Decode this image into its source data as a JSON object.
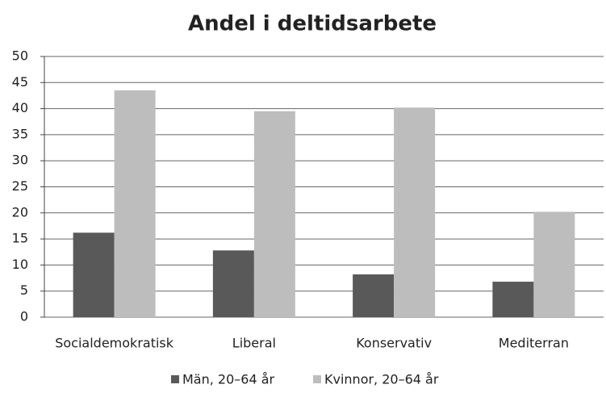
{
  "chart_data": {
    "type": "bar",
    "title": "Andel i deltidsarbete",
    "categories": [
      "Socialdemokratisk",
      "Liberal",
      "Konservativ",
      "Mediterran"
    ],
    "series": [
      {
        "name": "Män, 20–64 år",
        "color": "#595959",
        "values": [
          16.2,
          12.8,
          8.2,
          6.8
        ]
      },
      {
        "name": "Kvinnor, 20–64 år",
        "color": "#bdbdbd",
        "values": [
          43.5,
          39.5,
          40.2,
          20.2
        ]
      }
    ],
    "ylim": [
      0,
      50
    ],
    "yticks": [
      0,
      5,
      10,
      15,
      20,
      25,
      30,
      35,
      40,
      45,
      50
    ],
    "grid": true,
    "legend": "bottom"
  }
}
